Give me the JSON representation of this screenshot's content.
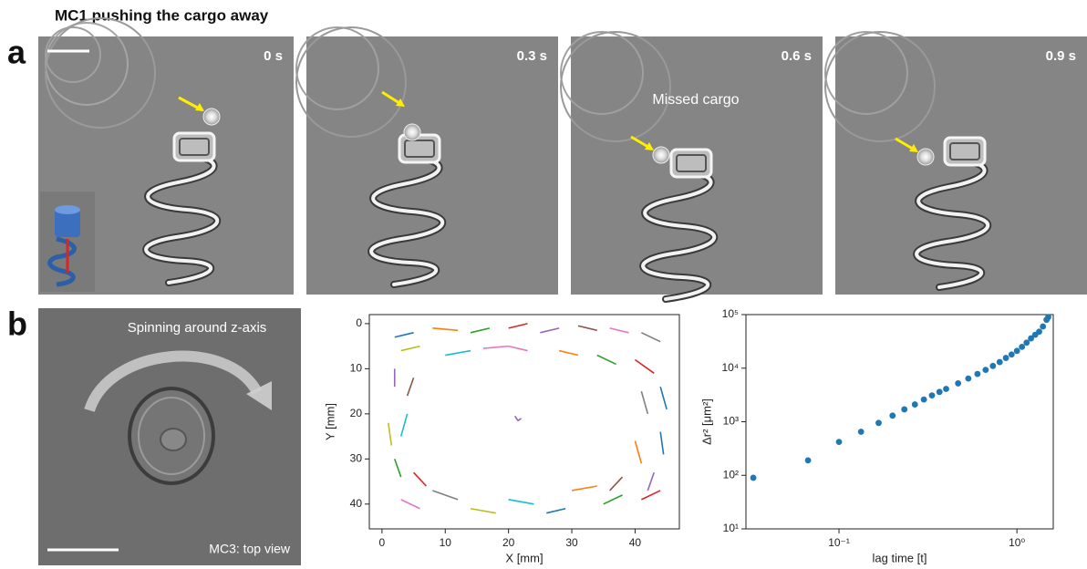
{
  "figure_title": "MC1 pushing the cargo away",
  "panels": {
    "a": {
      "label": "a",
      "frames": [
        {
          "time": "0 s"
        },
        {
          "time": "0.3 s"
        },
        {
          "time": "0.6 s"
        },
        {
          "time": "0.9 s"
        }
      ],
      "annotation": "Missed cargo"
    },
    "b": {
      "label": "b",
      "image_text": "Spinning around z-axis",
      "image_caption": "MC3: top view"
    }
  },
  "chart_data": [
    {
      "type": "track",
      "xlabel": "X [mm]",
      "ylabel": "Y [mm]",
      "xlim": [
        -2,
        47
      ],
      "ylim": [
        45.5,
        -2
      ],
      "xticks": [
        0,
        10,
        20,
        30,
        40
      ],
      "yticks": [
        0,
        10,
        20,
        30,
        40
      ],
      "series": [
        {
          "color": "#1f77b4",
          "x": [
            2,
            5
          ],
          "values": [
            3,
            2
          ]
        },
        {
          "color": "#ff7f0e",
          "x": [
            8,
            12
          ],
          "values": [
            1,
            1.5
          ]
        },
        {
          "color": "#2ca02c",
          "x": [
            14,
            17
          ],
          "values": [
            2,
            1
          ]
        },
        {
          "color": "#d62728",
          "x": [
            20,
            23
          ],
          "values": [
            1,
            0
          ]
        },
        {
          "color": "#9467bd",
          "x": [
            25,
            28
          ],
          "values": [
            2,
            1
          ]
        },
        {
          "color": "#8c564b",
          "x": [
            31,
            34
          ],
          "values": [
            0.5,
            1.5
          ]
        },
        {
          "color": "#e377c2",
          "x": [
            36,
            39
          ],
          "values": [
            1,
            2
          ]
        },
        {
          "color": "#7f7f7f",
          "x": [
            41,
            44
          ],
          "values": [
            2,
            4
          ]
        },
        {
          "color": "#bcbd22",
          "x": [
            3,
            6
          ],
          "values": [
            6,
            5
          ]
        },
        {
          "color": "#17becf",
          "x": [
            10,
            14
          ],
          "values": [
            7,
            6
          ]
        },
        {
          "color": "#e377c2",
          "x": [
            16,
            20,
            23
          ],
          "values": [
            5.5,
            5,
            6
          ]
        },
        {
          "color": "#ff7f0e",
          "x": [
            28,
            31
          ],
          "values": [
            6,
            7
          ]
        },
        {
          "color": "#2ca02c",
          "x": [
            34,
            37
          ],
          "values": [
            7,
            9
          ]
        },
        {
          "color": "#d62728",
          "x": [
            40,
            43
          ],
          "values": [
            8,
            11
          ]
        },
        {
          "color": "#9467bd",
          "x": [
            2,
            2
          ],
          "values": [
            10,
            14
          ]
        },
        {
          "color": "#8c564b",
          "x": [
            5,
            4
          ],
          "values": [
            12,
            16
          ]
        },
        {
          "color": "#1f77b4",
          "x": [
            44,
            45
          ],
          "values": [
            14,
            19
          ]
        },
        {
          "color": "#7f7f7f",
          "x": [
            41,
            42
          ],
          "values": [
            15,
            20
          ]
        },
        {
          "color": "#bcbd22",
          "x": [
            1,
            1.5
          ],
          "values": [
            22,
            27
          ]
        },
        {
          "color": "#17becf",
          "x": [
            4,
            3
          ],
          "values": [
            20,
            25
          ]
        },
        {
          "color": "#1f77b4",
          "x": [
            44,
            44.5
          ],
          "values": [
            24,
            29
          ]
        },
        {
          "color": "#ff7f0e",
          "x": [
            40,
            41
          ],
          "values": [
            26,
            31
          ]
        },
        {
          "color": "#2ca02c",
          "x": [
            2,
            3
          ],
          "values": [
            30,
            34
          ]
        },
        {
          "color": "#d62728",
          "x": [
            5,
            7
          ],
          "values": [
            33,
            36
          ]
        },
        {
          "color": "#9467bd",
          "x": [
            43,
            42
          ],
          "values": [
            33,
            37
          ]
        },
        {
          "color": "#8c564b",
          "x": [
            38,
            36
          ],
          "values": [
            34,
            37
          ]
        },
        {
          "color": "#e377c2",
          "x": [
            3,
            6
          ],
          "values": [
            39,
            41
          ]
        },
        {
          "color": "#7f7f7f",
          "x": [
            8,
            12
          ],
          "values": [
            37,
            39
          ]
        },
        {
          "color": "#bcbd22",
          "x": [
            14,
            18
          ],
          "values": [
            41,
            42
          ]
        },
        {
          "color": "#17becf",
          "x": [
            20,
            24
          ],
          "values": [
            39,
            40
          ]
        },
        {
          "color": "#1f77b4",
          "x": [
            26,
            29
          ],
          "values": [
            42,
            41
          ]
        },
        {
          "color": "#ff7f0e",
          "x": [
            30,
            34
          ],
          "values": [
            37,
            36
          ]
        },
        {
          "color": "#2ca02c",
          "x": [
            35,
            38
          ],
          "values": [
            40,
            38
          ]
        },
        {
          "color": "#d62728",
          "x": [
            41,
            44
          ],
          "values": [
            39,
            37
          ]
        },
        {
          "color": "#9467bd",
          "x": [
            21,
            21.5,
            22
          ],
          "values": [
            20.5,
            21.5,
            21
          ]
        }
      ]
    },
    {
      "type": "scatter",
      "xlabel": "lag time [t]",
      "ylabel": "Δr² [μm²]",
      "log_x": true,
      "log_y": true,
      "color": "#1f77b4",
      "xlim": [
        0.03,
        1.6
      ],
      "ylim": [
        10,
        100000
      ],
      "xticks": [
        {
          "value": 0.1,
          "label": "10⁻¹"
        },
        {
          "value": 1,
          "label": "10⁰"
        }
      ],
      "yticks": [
        {
          "value": 10,
          "label": "10¹"
        },
        {
          "value": 100,
          "label": "10²"
        },
        {
          "value": 1000,
          "label": "10³"
        },
        {
          "value": 10000,
          "label": "10⁴"
        },
        {
          "value": 100000,
          "label": "10⁵"
        }
      ],
      "x": [
        0.033,
        0.067,
        0.1,
        0.133,
        0.167,
        0.2,
        0.233,
        0.267,
        0.3,
        0.333,
        0.367,
        0.4,
        0.467,
        0.533,
        0.6,
        0.667,
        0.733,
        0.8,
        0.867,
        0.933,
        1.0,
        1.067,
        1.133,
        1.2,
        1.267,
        1.333,
        1.4,
        1.467,
        1.5
      ],
      "values": [
        90,
        190,
        420,
        650,
        950,
        1300,
        1700,
        2100,
        2600,
        3100,
        3600,
        4100,
        5200,
        6400,
        7800,
        9300,
        11000,
        13000,
        15500,
        18000,
        21000,
        25000,
        30000,
        36000,
        42000,
        48000,
        60000,
        80000,
        90000
      ]
    }
  ]
}
